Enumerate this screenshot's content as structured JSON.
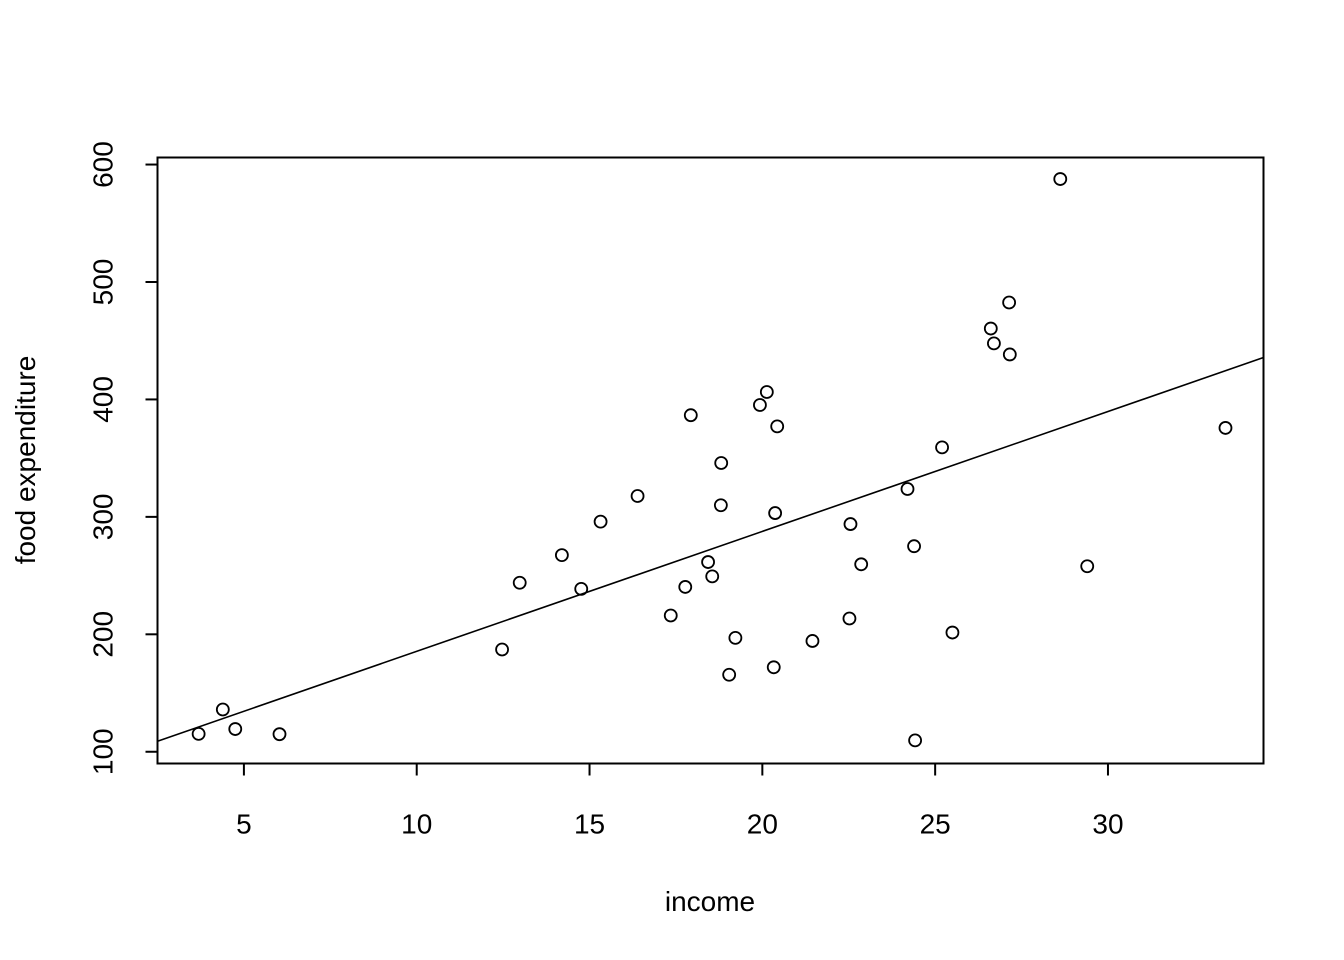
{
  "chart_data": {
    "type": "scatter",
    "title": "",
    "xlabel": "income",
    "ylabel": "food expenditure",
    "xlim": [
      2.5,
      34.5
    ],
    "ylim": [
      90,
      606
    ],
    "x_ticks": [
      5,
      10,
      15,
      20,
      25,
      30
    ],
    "y_ticks": [
      100,
      200,
      300,
      400,
      500,
      600
    ],
    "x_tick_labels": [
      "5",
      "10",
      "15",
      "20",
      "25",
      "30"
    ],
    "y_tick_labels": [
      "100",
      "200",
      "300",
      "400",
      "500",
      "600"
    ],
    "grid": false,
    "legend": "none",
    "points": [
      {
        "x": 3.69,
        "y": 115.2
      },
      {
        "x": 4.39,
        "y": 135.98
      },
      {
        "x": 4.75,
        "y": 119.34
      },
      {
        "x": 6.03,
        "y": 114.96
      },
      {
        "x": 12.47,
        "y": 187.05
      },
      {
        "x": 12.98,
        "y": 243.92
      },
      {
        "x": 14.2,
        "y": 267.43
      },
      {
        "x": 14.76,
        "y": 238.71
      },
      {
        "x": 15.32,
        "y": 295.94
      },
      {
        "x": 16.39,
        "y": 317.78
      },
      {
        "x": 17.35,
        "y": 216.0
      },
      {
        "x": 17.77,
        "y": 240.35
      },
      {
        "x": 17.93,
        "y": 386.57
      },
      {
        "x": 18.43,
        "y": 261.53
      },
      {
        "x": 18.55,
        "y": 249.34
      },
      {
        "x": 18.8,
        "y": 309.87
      },
      {
        "x": 18.81,
        "y": 345.89
      },
      {
        "x": 19.04,
        "y": 165.54
      },
      {
        "x": 19.22,
        "y": 196.98
      },
      {
        "x": 19.93,
        "y": 395.26
      },
      {
        "x": 20.13,
        "y": 406.34
      },
      {
        "x": 20.33,
        "y": 171.92
      },
      {
        "x": 20.37,
        "y": 303.23
      },
      {
        "x": 20.43,
        "y": 377.04
      },
      {
        "x": 21.45,
        "y": 194.35
      },
      {
        "x": 22.52,
        "y": 213.48
      },
      {
        "x": 22.55,
        "y": 293.87
      },
      {
        "x": 22.86,
        "y": 259.61
      },
      {
        "x": 24.2,
        "y": 323.71
      },
      {
        "x": 24.39,
        "y": 275.02
      },
      {
        "x": 24.42,
        "y": 109.71
      },
      {
        "x": 25.2,
        "y": 359.19
      },
      {
        "x": 25.5,
        "y": 201.51
      },
      {
        "x": 26.61,
        "y": 460.36
      },
      {
        "x": 26.7,
        "y": 447.76
      },
      {
        "x": 27.14,
        "y": 482.55
      },
      {
        "x": 27.16,
        "y": 438.29
      },
      {
        "x": 28.62,
        "y": 587.66
      },
      {
        "x": 29.4,
        "y": 257.95
      },
      {
        "x": 33.4,
        "y": 375.73
      }
    ],
    "fit_line": {
      "intercept": 83.42,
      "slope": 10.21
    }
  }
}
